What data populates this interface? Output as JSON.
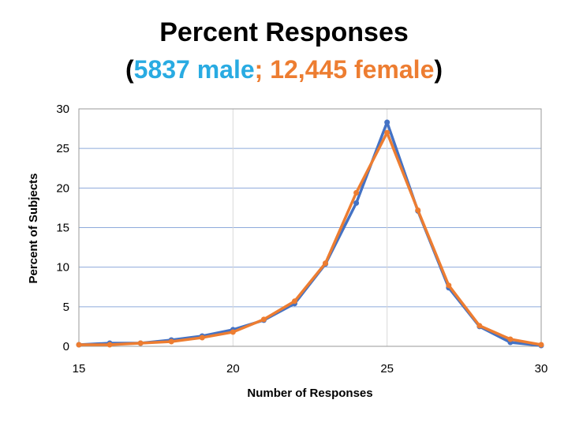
{
  "chart_data": {
    "type": "line",
    "title": "Percent Responses",
    "subtitle": {
      "open": "(",
      "male": "5837 male",
      "separator": "; ",
      "female": "12,445 female",
      "close": ")"
    },
    "xlabel": "Number of Responses",
    "ylabel": "Percent of Subjects",
    "xlim": [
      15,
      30
    ],
    "ylim": [
      0,
      30
    ],
    "xticks": [
      15,
      20,
      25,
      30
    ],
    "yticks": [
      0,
      5,
      10,
      15,
      20,
      25,
      30
    ],
    "grid": true,
    "legend": "none",
    "x": [
      15,
      16,
      17,
      18,
      19,
      20,
      21,
      22,
      23,
      24,
      25,
      26,
      27,
      28,
      29,
      30
    ],
    "series": [
      {
        "name": "male",
        "color": "#4472c4",
        "values": [
          0.2,
          0.4,
          0.4,
          0.8,
          1.3,
          2.1,
          3.3,
          5.4,
          10.4,
          18.1,
          28.3,
          17.1,
          7.4,
          2.5,
          0.5,
          0.1
        ]
      },
      {
        "name": "female",
        "color": "#ed7d31",
        "values": [
          0.2,
          0.2,
          0.4,
          0.6,
          1.1,
          1.8,
          3.4,
          5.7,
          10.5,
          19.4,
          27.0,
          17.2,
          7.7,
          2.6,
          0.9,
          0.2
        ]
      }
    ]
  }
}
